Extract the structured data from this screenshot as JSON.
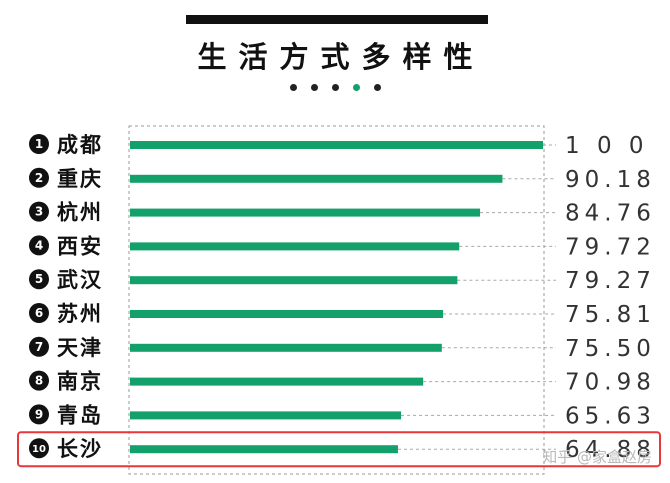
{
  "header": {
    "title": "生活方式多样性",
    "dots": [
      false,
      false,
      false,
      true,
      false
    ]
  },
  "colors": {
    "bar": "#13a06a",
    "highlight": "#e8363b",
    "text": "#111111",
    "value": "#333333"
  },
  "watermark": "知乎 @家盒赵房",
  "chart_data": {
    "type": "bar",
    "orientation": "horizontal",
    "xlim": [
      0,
      100
    ],
    "highlight_rank": 10,
    "categories": [
      {
        "rank": "1",
        "name": "成都",
        "value": 100,
        "label": "1 0 0"
      },
      {
        "rank": "2",
        "name": "重庆",
        "value": 90.18,
        "label": "90.18"
      },
      {
        "rank": "3",
        "name": "杭州",
        "value": 84.76,
        "label": "84.76"
      },
      {
        "rank": "4",
        "name": "西安",
        "value": 79.72,
        "label": "79.72"
      },
      {
        "rank": "5",
        "name": "武汉",
        "value": 79.27,
        "label": "79.27"
      },
      {
        "rank": "6",
        "name": "苏州",
        "value": 75.81,
        "label": "75.81"
      },
      {
        "rank": "7",
        "name": "天津",
        "value": 75.5,
        "label": "75.50"
      },
      {
        "rank": "8",
        "name": "南京",
        "value": 70.98,
        "label": "70.98"
      },
      {
        "rank": "9",
        "name": "青岛",
        "value": 65.63,
        "label": "65.63"
      },
      {
        "rank": "10",
        "name": "长沙",
        "value": 64.88,
        "label": "64.88"
      }
    ]
  }
}
